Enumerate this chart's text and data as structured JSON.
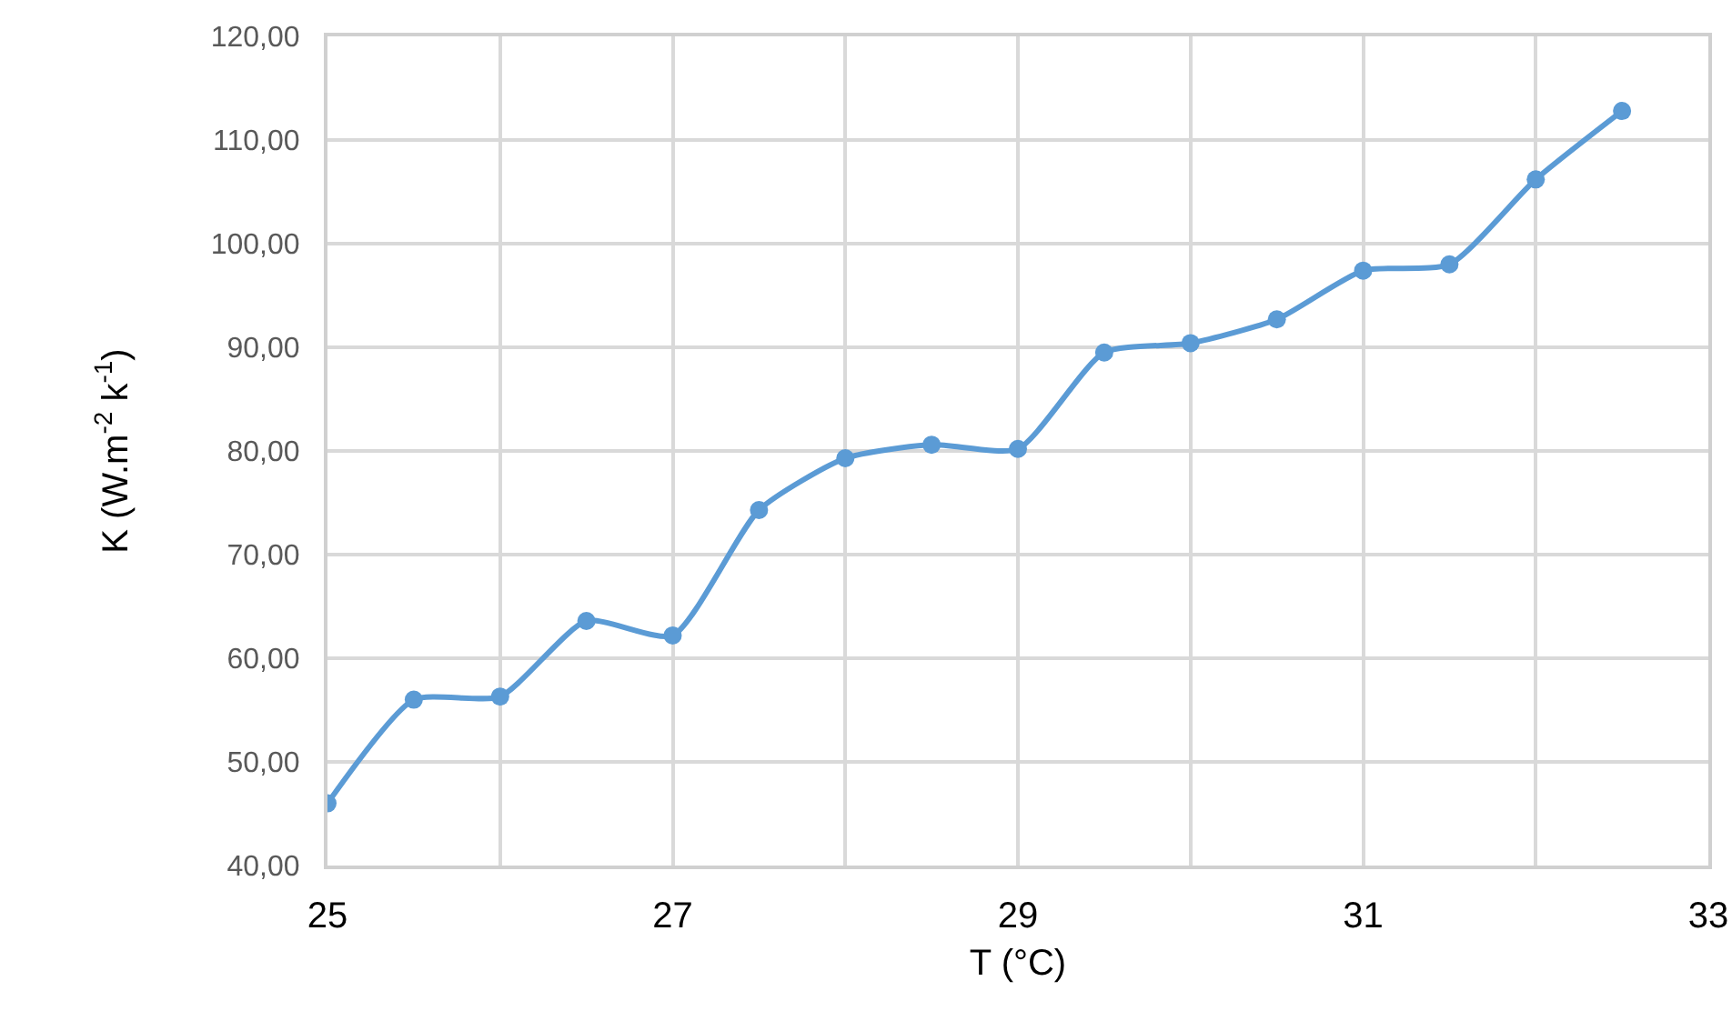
{
  "chart_data": {
    "type": "line",
    "xlabel": "T (°C)",
    "ylabel": "K (W.m$^{-2}$ k$^{-1}$)",
    "x": [
      25,
      25.5,
      26,
      26.5,
      27,
      27.5,
      28,
      28.5,
      29,
      29.5,
      30,
      30.5,
      31,
      31.5,
      32,
      32.5
    ],
    "series": [
      {
        "color": "#5b9bd5",
        "values": [
          46,
          56,
          56.3,
          63.6,
          62.2,
          74.3,
          79.3,
          80.6,
          80.2,
          89.5,
          90.4,
          92.7,
          97.4,
          98,
          106.2,
          112.8
        ]
      }
    ],
    "xlim": [
      25,
      33
    ],
    "xticks": [
      25,
      {
        "value": 26,
        "label": null
      },
      27,
      {
        "value": 28,
        "label": null
      },
      29,
      {
        "value": 30,
        "label": null
      },
      31,
      {
        "value": 32,
        "label": null
      },
      33
    ],
    "ylim": [
      40,
      120
    ],
    "yticks": [
      {
        "value": 40,
        "label": "40,00"
      },
      {
        "value": 50,
        "label": "50,00"
      },
      {
        "value": 60,
        "label": "60,00"
      },
      {
        "value": 70,
        "label": "70,00"
      },
      {
        "value": 80,
        "label": "80,00"
      },
      {
        "value": 90,
        "label": "90,00"
      },
      {
        "value": 100,
        "label": "100,00"
      },
      {
        "value": 110,
        "label": "110,00"
      },
      {
        "value": 120,
        "label": "120,00"
      }
    ],
    "grid": true,
    "legend": false,
    "marker": "circle",
    "line_style": "solid"
  }
}
